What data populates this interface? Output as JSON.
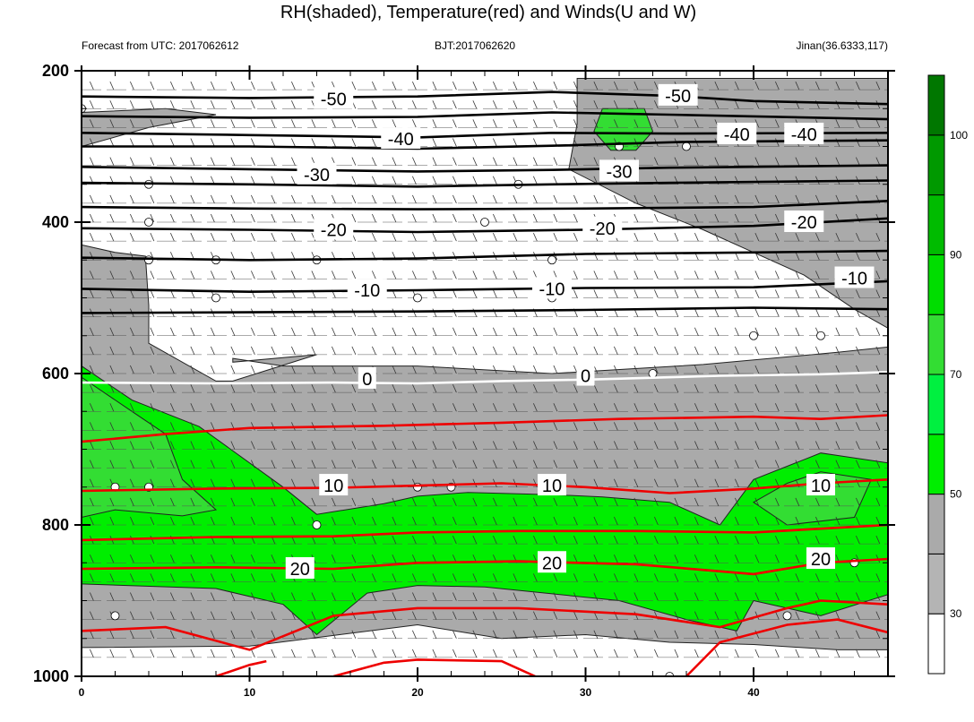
{
  "chart_data": {
    "type": "heatmap",
    "title": "RH(shaded), Temperature(red) and Winds(U and W)",
    "subtitle_left": "Forecast from UTC: 2017062612",
    "subtitle_center": "BJT:2017062620",
    "subtitle_right": "Jinan(36.6333,117)",
    "x_ticks": [
      0,
      10,
      20,
      30,
      40
    ],
    "xlim": [
      0,
      48
    ],
    "y_ticks": [
      200,
      400,
      600,
      800,
      1000
    ],
    "ylim": [
      200,
      1000
    ],
    "y_inverted": true,
    "colorbar": {
      "ticks": [
        30,
        50,
        70,
        90,
        100
      ],
      "levels": [
        0,
        30,
        40,
        50,
        60,
        70,
        80,
        90,
        95,
        100
      ],
      "colors": [
        "#ffffff",
        "#b4b4b4",
        "#aaaaaa",
        "#00ee00",
        "#00f040",
        "#33dd33",
        "#00dd00",
        "#00bb00",
        "#009900",
        "#007700"
      ]
    },
    "rh_regions": [
      {
        "label": "RH>30 upper-right",
        "rh": 40,
        "points": [
          [
            29.5,
            210
          ],
          [
            48,
            210
          ],
          [
            48,
            540
          ],
          [
            46,
            515
          ],
          [
            43,
            470
          ],
          [
            40,
            440
          ],
          [
            37,
            410
          ],
          [
            33,
            375
          ],
          [
            29,
            330
          ],
          [
            29.5,
            270
          ]
        ]
      },
      {
        "label": "RH>30 upper-left",
        "rh": 40,
        "points": [
          [
            0,
            255
          ],
          [
            5,
            250
          ],
          [
            8,
            258
          ],
          [
            4,
            275
          ],
          [
            0,
            300
          ]
        ]
      },
      {
        "label": "RH>30 lower",
        "rh": 40,
        "points": [
          [
            0,
            430
          ],
          [
            2,
            440
          ],
          [
            3.8,
            445
          ],
          [
            4,
            510
          ],
          [
            4,
            560
          ],
          [
            8,
            610
          ],
          [
            9,
            610
          ],
          [
            14,
            575
          ],
          [
            9,
            585
          ],
          [
            9,
            580
          ],
          [
            12,
            590
          ],
          [
            20,
            590
          ],
          [
            28,
            600
          ],
          [
            37,
            588
          ],
          [
            45,
            572
          ],
          [
            48,
            565
          ],
          [
            48,
            965
          ],
          [
            45,
            965
          ],
          [
            40,
            958
          ],
          [
            35,
            955
          ],
          [
            30,
            945
          ],
          [
            25,
            950
          ],
          [
            20,
            932
          ],
          [
            10,
            960
          ],
          [
            0,
            962
          ]
        ]
      },
      {
        "label": "RH>50 band",
        "rh": 55,
        "points": [
          [
            0,
            590
          ],
          [
            3,
            635
          ],
          [
            7,
            670
          ],
          [
            12,
            750
          ],
          [
            14,
            786
          ],
          [
            18,
            772
          ],
          [
            20,
            762
          ],
          [
            23,
            757
          ],
          [
            28,
            760
          ],
          [
            31,
            763
          ],
          [
            35,
            770
          ],
          [
            38,
            800
          ],
          [
            40,
            740
          ],
          [
            44,
            705
          ],
          [
            48,
            718
          ],
          [
            48,
            892
          ],
          [
            44,
            920
          ],
          [
            40,
            900
          ],
          [
            39,
            940
          ],
          [
            36,
            925
          ],
          [
            32,
            900
          ],
          [
            24,
            882
          ],
          [
            20,
            880
          ],
          [
            17,
            890
          ],
          [
            14,
            945
          ],
          [
            12,
            905
          ],
          [
            8,
            884
          ],
          [
            0,
            878
          ]
        ]
      },
      {
        "label": "RH>70 left",
        "rh": 75,
        "points": [
          [
            0,
            605
          ],
          [
            3,
            650
          ],
          [
            5,
            680
          ],
          [
            6,
            740
          ],
          [
            8,
            780
          ],
          [
            6,
            788
          ],
          [
            2,
            780
          ],
          [
            0,
            790
          ]
        ]
      },
      {
        "label": "RH>70 right",
        "rh": 75,
        "points": [
          [
            40,
            770
          ],
          [
            42,
            745
          ],
          [
            44,
            730
          ],
          [
            47,
            740
          ],
          [
            46,
            790
          ],
          [
            42,
            800
          ]
        ]
      },
      {
        "label": "RH>70 top",
        "rh": 75,
        "points": [
          [
            31,
            250
          ],
          [
            33.5,
            250
          ],
          [
            34,
            280
          ],
          [
            33,
            305
          ],
          [
            31.5,
            305
          ],
          [
            30.5,
            280
          ]
        ]
      }
    ],
    "isotherms_black": [
      {
        "t": -50,
        "pts": [
          [
            0,
            234
          ],
          [
            10,
            236
          ],
          [
            20,
            234
          ],
          [
            28,
            228
          ],
          [
            35,
            233
          ],
          [
            40,
            240
          ],
          [
            48,
            244
          ]
        ]
      },
      {
        "t": -50,
        "pts": [
          [
            0,
            260
          ],
          [
            10,
            262
          ],
          [
            20,
            261
          ],
          [
            28,
            255
          ],
          [
            35,
            258
          ],
          [
            48,
            264
          ]
        ]
      },
      {
        "t": -40,
        "pts": [
          [
            0,
            282
          ],
          [
            10,
            285
          ],
          [
            20,
            288
          ],
          [
            28,
            282
          ],
          [
            35,
            283
          ],
          [
            48,
            282
          ]
        ]
      },
      {
        "t": -40,
        "pts": [
          [
            0,
            300
          ],
          [
            10,
            300
          ],
          [
            20,
            303
          ],
          [
            28,
            299
          ],
          [
            36,
            294
          ],
          [
            48,
            292
          ]
        ]
      },
      {
        "t": -30,
        "pts": [
          [
            0,
            327
          ],
          [
            10,
            330
          ],
          [
            20,
            333
          ],
          [
            28,
            331
          ],
          [
            35,
            328
          ],
          [
            48,
            325
          ]
        ]
      },
      {
        "t": -30,
        "pts": [
          [
            0,
            348
          ],
          [
            10,
            350
          ],
          [
            20,
            353
          ],
          [
            28,
            350
          ],
          [
            35,
            348
          ],
          [
            48,
            345
          ]
        ]
      },
      {
        "t": -20,
        "pts": [
          [
            0,
            380
          ],
          [
            10,
            382
          ],
          [
            20,
            383
          ],
          [
            30,
            382
          ],
          [
            40,
            380
          ],
          [
            48,
            372
          ]
        ]
      },
      {
        "t": -20,
        "pts": [
          [
            0,
            408
          ],
          [
            10,
            410
          ],
          [
            20,
            413
          ],
          [
            30,
            410
          ],
          [
            40,
            405
          ],
          [
            48,
            395
          ]
        ]
      },
      {
        "t": -10,
        "pts": [
          [
            0,
            447
          ],
          [
            10,
            450
          ],
          [
            20,
            448
          ],
          [
            30,
            442
          ],
          [
            40,
            440
          ],
          [
            48,
            438
          ]
        ]
      },
      {
        "t": -10,
        "pts": [
          [
            0,
            488
          ],
          [
            10,
            492
          ],
          [
            20,
            490
          ],
          [
            30,
            487
          ],
          [
            40,
            486
          ],
          [
            48,
            478
          ]
        ]
      },
      {
        "t": -10,
        "pts": [
          [
            0,
            520
          ],
          [
            10,
            519
          ],
          [
            20,
            518
          ],
          [
            30,
            516
          ],
          [
            40,
            513
          ],
          [
            48,
            515
          ]
        ]
      }
    ],
    "isotherm_zero": [
      [
        0,
        612
      ],
      [
        8,
        613
      ],
      [
        15,
        612
      ],
      [
        20,
        613
      ],
      [
        25,
        610
      ],
      [
        30,
        608
      ],
      [
        38,
        603
      ],
      [
        44,
        601
      ],
      [
        48,
        598
      ]
    ],
    "isotherms_red": [
      {
        "t": 10,
        "pts": [
          [
            0,
            690
          ],
          [
            5,
            680
          ],
          [
            10,
            672
          ],
          [
            18,
            669
          ],
          [
            25,
            665
          ],
          [
            32,
            660
          ],
          [
            40,
            657
          ],
          [
            44,
            660
          ],
          [
            48,
            655
          ]
        ]
      },
      {
        "t": 10,
        "pts": [
          [
            0,
            755
          ],
          [
            8,
            752
          ],
          [
            15,
            751
          ],
          [
            20,
            748
          ],
          [
            25,
            745
          ],
          [
            30,
            750
          ],
          [
            35,
            758
          ],
          [
            40,
            752
          ],
          [
            44,
            745
          ],
          [
            48,
            740
          ]
        ]
      },
      {
        "t": 20,
        "pts": [
          [
            0,
            820
          ],
          [
            8,
            816
          ],
          [
            15,
            815
          ],
          [
            20,
            810
          ],
          [
            26,
            808
          ],
          [
            33,
            808
          ],
          [
            40,
            810
          ],
          [
            44,
            805
          ],
          [
            48,
            800
          ]
        ]
      },
      {
        "t": 20,
        "pts": [
          [
            0,
            858
          ],
          [
            8,
            856
          ],
          [
            15,
            858
          ],
          [
            20,
            850
          ],
          [
            26,
            848
          ],
          [
            33,
            852
          ],
          [
            40,
            865
          ],
          [
            44,
            850
          ],
          [
            48,
            845
          ]
        ]
      },
      {
        "t": 20,
        "pts": [
          [
            0,
            940
          ],
          [
            5,
            935
          ],
          [
            10,
            965
          ],
          [
            15,
            920
          ],
          [
            20,
            910
          ],
          [
            26,
            910
          ],
          [
            33,
            918
          ],
          [
            38,
            935
          ],
          [
            42,
            910
          ],
          [
            44,
            900
          ],
          [
            48,
            905
          ]
        ]
      },
      {
        "t": 20,
        "pts": [
          [
            48,
            942
          ],
          [
            45,
            925
          ],
          [
            42,
            932
          ],
          [
            38,
            955
          ],
          [
            36,
            1000
          ]
        ]
      },
      {
        "t": 20,
        "pts": [
          [
            8,
            1000
          ],
          [
            10,
            985
          ],
          [
            11,
            980
          ]
        ]
      },
      {
        "t": 20,
        "pts": [
          [
            15,
            1000
          ],
          [
            18,
            982
          ],
          [
            20,
            978
          ],
          [
            25,
            980
          ],
          [
            27,
            1000
          ]
        ]
      }
    ],
    "isotherm_labels": [
      {
        "text": "-50",
        "x": 15,
        "y": 237
      },
      {
        "text": "-50",
        "x": 35.5,
        "y": 233
      },
      {
        "text": "-40",
        "x": 19,
        "y": 290
      },
      {
        "text": "-40",
        "x": 39,
        "y": 284
      },
      {
        "text": "-40",
        "x": 43,
        "y": 284
      },
      {
        "text": "-30",
        "x": 14,
        "y": 337
      },
      {
        "text": "-30",
        "x": 32,
        "y": 333
      },
      {
        "text": "-20",
        "x": 15,
        "y": 410
      },
      {
        "text": "-20",
        "x": 31,
        "y": 408
      },
      {
        "text": "-20",
        "x": 43,
        "y": 400
      },
      {
        "text": "-10",
        "x": 17,
        "y": 490
      },
      {
        "text": "-10",
        "x": 28,
        "y": 488
      },
      {
        "text": "-10",
        "x": 46,
        "y": 474
      },
      {
        "text": "0",
        "x": 17,
        "y": 607
      },
      {
        "text": "0",
        "x": 30,
        "y": 603
      },
      {
        "text": "10",
        "x": 15,
        "y": 748
      },
      {
        "text": "10",
        "x": 28,
        "y": 748
      },
      {
        "text": "10",
        "x": 44,
        "y": 748
      },
      {
        "text": "20",
        "x": 13,
        "y": 858
      },
      {
        "text": "20",
        "x": 28,
        "y": 850
      },
      {
        "text": "20",
        "x": 44,
        "y": 845
      }
    ]
  }
}
